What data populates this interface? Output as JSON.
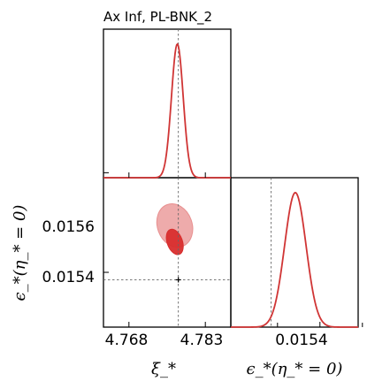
{
  "chart_data": {
    "type": "triangle-corner",
    "title": "Ax Inf, PL-BNK_2",
    "xlabel": "ξ_*",
    "ylabel": "ϵ_*(η_* = 0)",
    "xlabel2": "ϵ_*(η_* = 0)",
    "parameters": [
      {
        "name": "ξ_*",
        "range": [
          4.763,
          4.788
        ],
        "ticks": [
          "4.768",
          "4.783"
        ],
        "reference": 4.7777,
        "marginal": {
          "mean": 4.7775,
          "sigma": 0.00115
        }
      },
      {
        "name": "ϵ_*(η_* = 0)",
        "range": [
          0.01529,
          0.01559
        ],
        "ticks": [
          "0.0154",
          "0.0156"
        ],
        "reference": 0.015385,
        "marginal": {
          "mean": 0.015442,
          "sigma": 2.53e-05
        }
      }
    ],
    "contours": [
      {
        "level": "95%",
        "color": "#e88f8f",
        "center": [
          4.777,
          0.015494
        ],
        "rx": 0.0034,
        "ry": 4.45e-05,
        "tilt": -20
      },
      {
        "level": "68%",
        "color": "#d82d2d",
        "center": [
          4.777,
          0.015461
        ],
        "rx": 0.0015,
        "ry": 2.65e-05,
        "tilt": -20
      }
    ],
    "marker": [
      4.7777,
      0.015385
    ],
    "colors": {
      "curve": "#d03535",
      "inner": "#d82d2d",
      "outer": "#e88f8f",
      "reference": "#666666"
    },
    "grid": false
  }
}
